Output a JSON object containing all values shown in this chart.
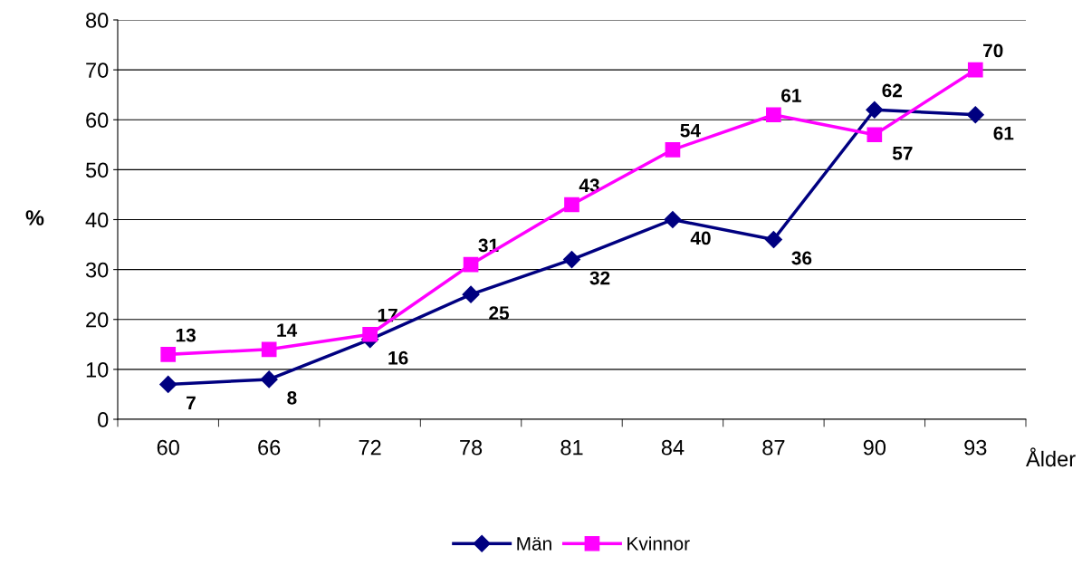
{
  "chart_data": {
    "type": "line",
    "xlabel": "Ålder",
    "ylabel": "%",
    "categories": [
      "60",
      "66",
      "72",
      "78",
      "81",
      "84",
      "87",
      "90",
      "93"
    ],
    "series": [
      {
        "name": "Män",
        "color": "#000080",
        "marker": "diamond",
        "values": [
          7,
          8,
          16,
          25,
          32,
          40,
          36,
          62,
          61
        ]
      },
      {
        "name": "Kvinnor",
        "color": "#ff00ff",
        "marker": "square",
        "values": [
          13,
          14,
          17,
          31,
          43,
          54,
          61,
          57,
          70
        ]
      }
    ],
    "ylim": [
      0,
      80
    ],
    "yticks": [
      0,
      10,
      20,
      30,
      40,
      50,
      60,
      70,
      80
    ],
    "grid": "y",
    "legend": "bottom",
    "data_labels": true,
    "line_style": "solid"
  }
}
